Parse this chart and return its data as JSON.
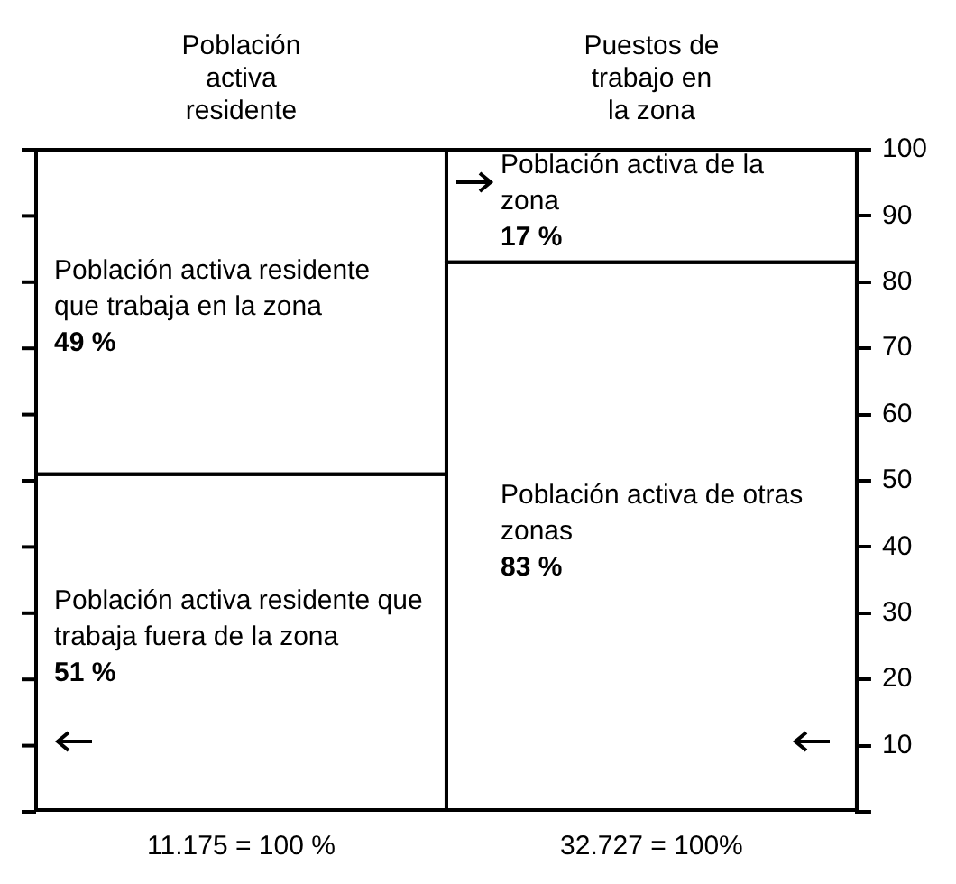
{
  "chart_data": {
    "type": "bar",
    "stacked": true,
    "categories": [
      "Población activa residente",
      "Puestos de trabajo en la zona"
    ],
    "series": [
      {
        "name": "Población activa residente que trabaja fuera de la zona",
        "color": "#ffffff",
        "values": [
          51,
          null
        ],
        "value_labels": [
          "51 %",
          null
        ]
      },
      {
        "name": "Población activa residente que trabaja en la zona",
        "color": "#ffffff",
        "values": [
          49,
          null
        ],
        "value_labels": [
          "49 %",
          null
        ]
      },
      {
        "name": "Población activa de otras zonas",
        "color": "#ffffff",
        "values": [
          null,
          83
        ],
        "value_labels": [
          null,
          "83 %"
        ]
      },
      {
        "name": "Población activa de la zona",
        "color": "#ffffff",
        "values": [
          null,
          17
        ],
        "value_labels": [
          null,
          "17 %"
        ]
      }
    ],
    "ylim": [
      0,
      100
    ],
    "yticks": [
      {
        "value": 0,
        "label": null
      },
      10,
      20,
      30,
      40,
      50,
      60,
      70,
      80,
      90,
      100
    ],
    "annotations": [
      "11.175 = 100 %",
      "32.727 = 100%"
    ],
    "legend": false,
    "grid": false
  }
}
